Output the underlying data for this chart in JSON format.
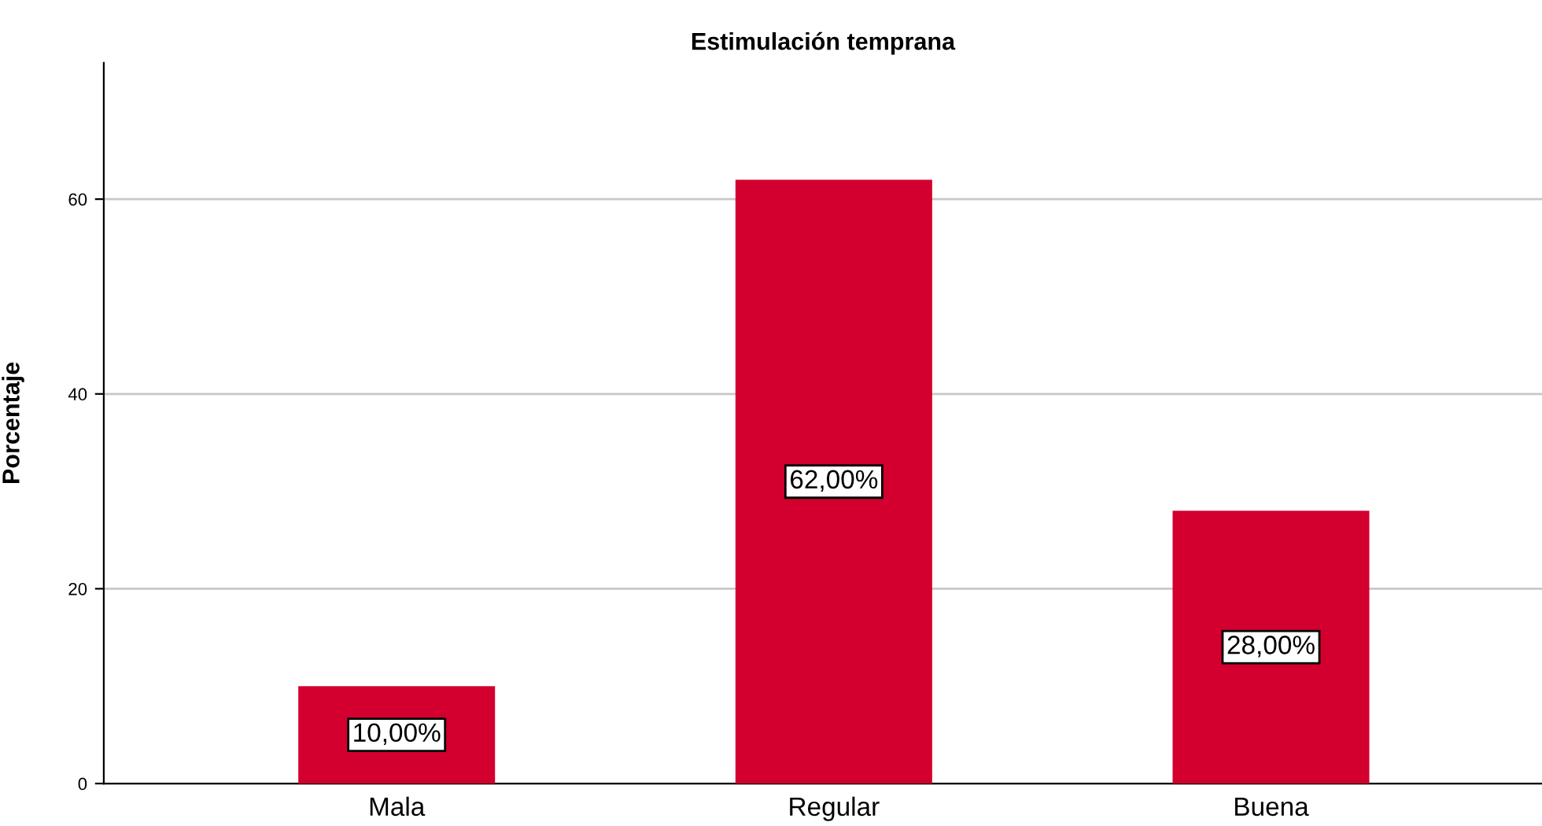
{
  "chart_data": {
    "type": "bar",
    "title": "Estimulación temprana",
    "ylabel": "Porcentaje",
    "categories": [
      "Mala",
      "Regular",
      "Buena"
    ],
    "values": [
      10,
      62,
      28
    ],
    "value_labels": [
      "10,00%",
      "62,00%",
      "28,00%"
    ],
    "color": "#d3002f",
    "ylim": [
      0,
      74
    ],
    "yticks": [
      0,
      20,
      40,
      60
    ],
    "grid": "y",
    "legend": false
  }
}
